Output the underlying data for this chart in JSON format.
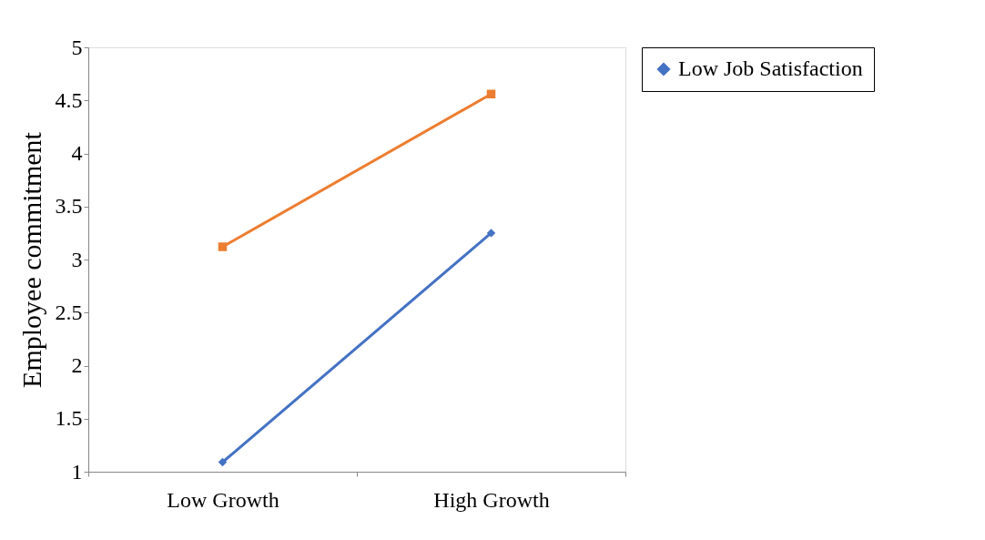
{
  "chart_data": {
    "type": "line",
    "ylabel": "Employee commitment",
    "categories": [
      "Low Growth",
      "High Growth"
    ],
    "series": [
      {
        "name": "Low Job Satisfaction",
        "color": "#4472c4",
        "marker": "diamond",
        "values": [
          1.09,
          3.25
        ]
      },
      {
        "color": "#ed7d31",
        "marker": "square",
        "values": [
          3.12,
          4.56
        ]
      }
    ],
    "ylim": [
      1,
      5
    ],
    "yticks": [
      1,
      1.5,
      2,
      2.5,
      3,
      3.5,
      4,
      4.5,
      5
    ],
    "grid": false,
    "legend": "right"
  }
}
